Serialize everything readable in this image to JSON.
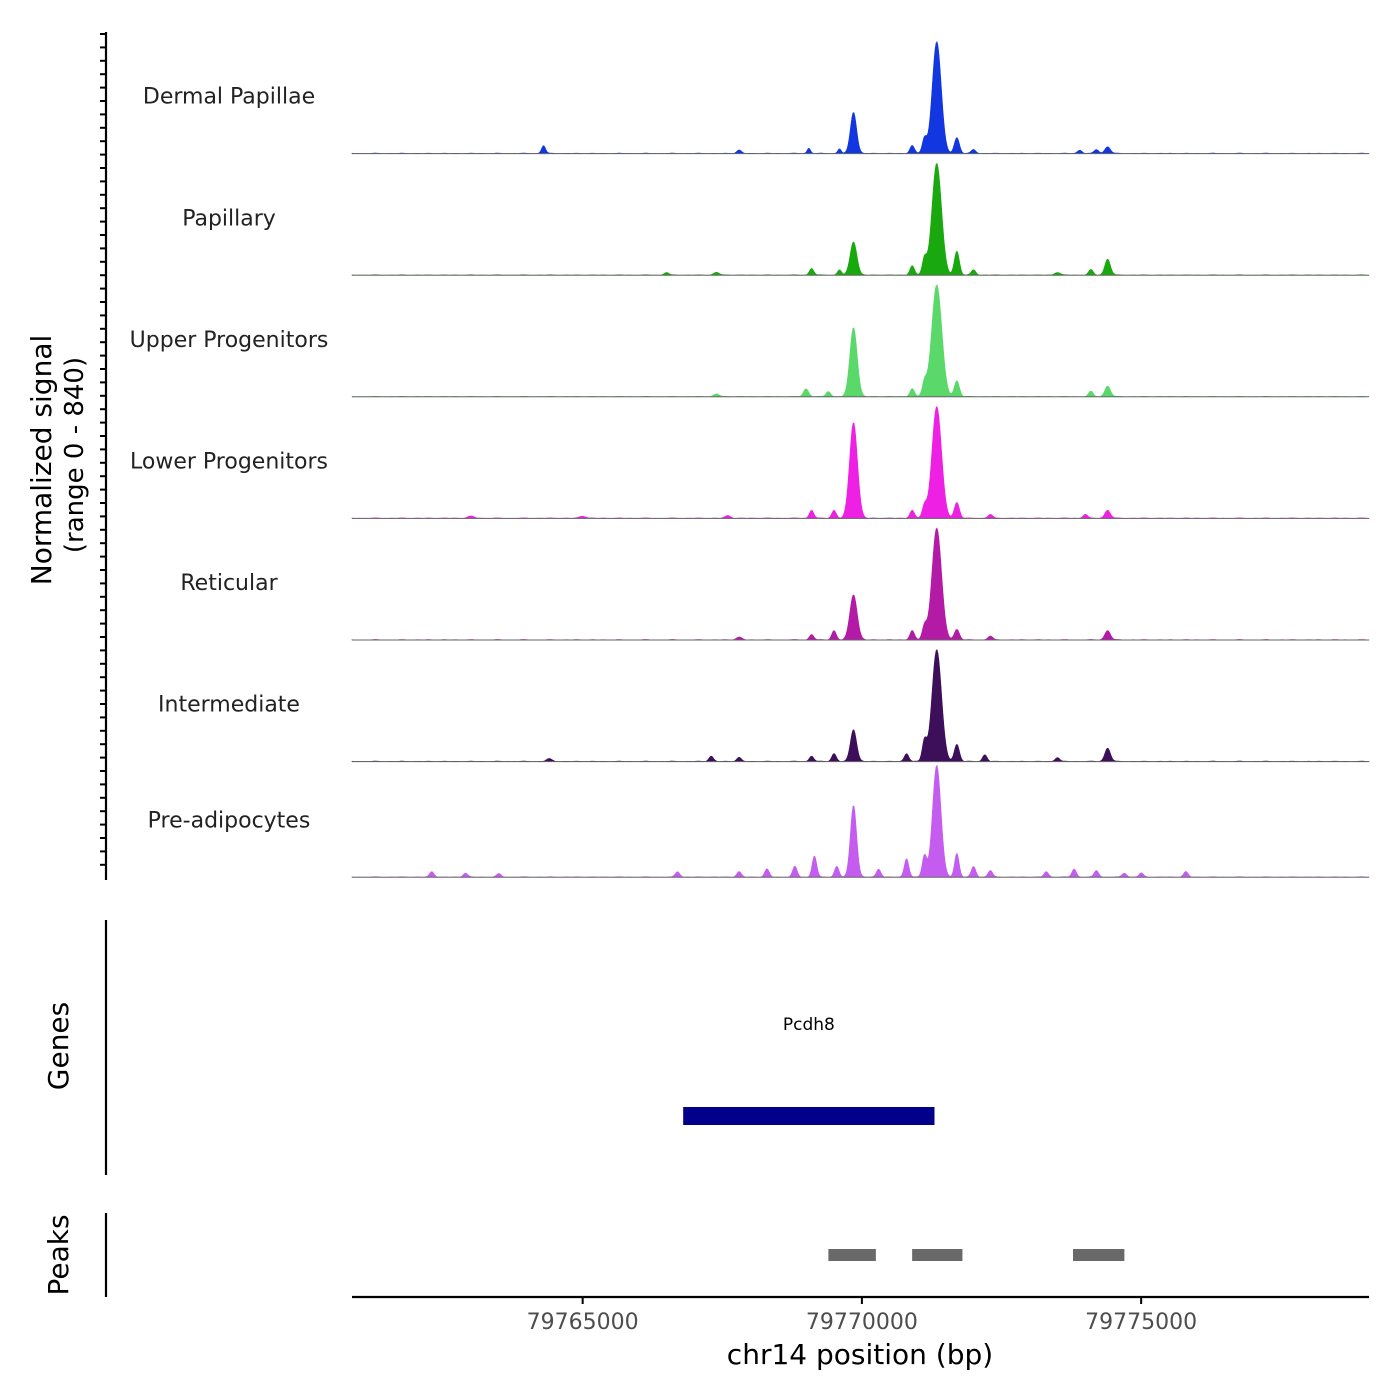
{
  "chart_data": {
    "type": "area",
    "title": "",
    "xlabel": "chr14 position (bp)",
    "ylabel_line1": "Normalized signal",
    "ylabel_line2": "(range 0 - 840)",
    "ylim": [
      0,
      840
    ],
    "xlim": [
      79760870,
      79779080
    ],
    "x_ticks": [
      79765000,
      79770000,
      79775000
    ],
    "x_tick_labels": [
      "79765000",
      "79770000",
      "79775000"
    ],
    "series": [
      {
        "name": "Dermal Papillae",
        "color": "#1236e0",
        "peaks": [
          [
            79764300,
            60,
            35
          ],
          [
            79767800,
            25,
            40
          ],
          [
            79769050,
            40,
            30
          ],
          [
            79769600,
            35,
            30
          ],
          [
            79769850,
            310,
            55
          ],
          [
            79770900,
            60,
            40
          ],
          [
            79771120,
            110,
            40
          ],
          [
            79771340,
            840,
            80
          ],
          [
            79771700,
            120,
            45
          ],
          [
            79772000,
            30,
            40
          ],
          [
            79773900,
            25,
            40
          ],
          [
            79774200,
            30,
            40
          ],
          [
            79774400,
            50,
            50
          ]
        ]
      },
      {
        "name": "Papillary",
        "color": "#1aa80f",
        "peaks": [
          [
            79766500,
            20,
            40
          ],
          [
            79767400,
            20,
            50
          ],
          [
            79769100,
            50,
            40
          ],
          [
            79769600,
            40,
            35
          ],
          [
            79769850,
            250,
            60
          ],
          [
            79770900,
            70,
            40
          ],
          [
            79771120,
            120,
            40
          ],
          [
            79771340,
            840,
            85
          ],
          [
            79771700,
            180,
            45
          ],
          [
            79772000,
            40,
            40
          ],
          [
            79773500,
            20,
            50
          ],
          [
            79774100,
            40,
            40
          ],
          [
            79774400,
            120,
            50
          ]
        ]
      },
      {
        "name": "Upper Progenitors",
        "color": "#5ad96a",
        "peaks": [
          [
            79767400,
            20,
            50
          ],
          [
            79769000,
            60,
            45
          ],
          [
            79769400,
            40,
            40
          ],
          [
            79769850,
            520,
            65
          ],
          [
            79770900,
            60,
            40
          ],
          [
            79771120,
            100,
            40
          ],
          [
            79771340,
            840,
            90
          ],
          [
            79771700,
            120,
            45
          ],
          [
            79774100,
            40,
            40
          ],
          [
            79774400,
            80,
            50
          ]
        ]
      },
      {
        "name": "Lower Progenitors",
        "color": "#ee20e4",
        "peaks": [
          [
            79763000,
            15,
            60
          ],
          [
            79765000,
            15,
            60
          ],
          [
            79767600,
            20,
            50
          ],
          [
            79769100,
            60,
            40
          ],
          [
            79769500,
            60,
            40
          ],
          [
            79769850,
            720,
            70
          ],
          [
            79770900,
            60,
            40
          ],
          [
            79771120,
            90,
            40
          ],
          [
            79771340,
            840,
            85
          ],
          [
            79771700,
            120,
            45
          ],
          [
            79772300,
            30,
            40
          ],
          [
            79774000,
            30,
            40
          ],
          [
            79774400,
            60,
            50
          ]
        ]
      },
      {
        "name": "Reticular",
        "color": "#b31aa6",
        "peaks": [
          [
            79767800,
            20,
            50
          ],
          [
            79769100,
            40,
            40
          ],
          [
            79769500,
            70,
            40
          ],
          [
            79769850,
            340,
            65
          ],
          [
            79770900,
            70,
            40
          ],
          [
            79771120,
            100,
            40
          ],
          [
            79771340,
            840,
            85
          ],
          [
            79771700,
            80,
            45
          ],
          [
            79772300,
            30,
            40
          ],
          [
            79774400,
            70,
            50
          ]
        ]
      },
      {
        "name": "Intermediate",
        "color": "#3d0f5a",
        "peaks": [
          [
            79764400,
            20,
            50
          ],
          [
            79767300,
            40,
            40
          ],
          [
            79767800,
            30,
            40
          ],
          [
            79769100,
            40,
            40
          ],
          [
            79769500,
            60,
            40
          ],
          [
            79769850,
            240,
            55
          ],
          [
            79770800,
            60,
            40
          ],
          [
            79771120,
            150,
            40
          ],
          [
            79771340,
            840,
            85
          ],
          [
            79771700,
            130,
            45
          ],
          [
            79772200,
            50,
            40
          ],
          [
            79773500,
            30,
            40
          ],
          [
            79774400,
            100,
            50
          ]
        ]
      },
      {
        "name": "Pre-adipocytes",
        "color": "#c45cf0",
        "peaks": [
          [
            79762300,
            40,
            40
          ],
          [
            79762900,
            30,
            40
          ],
          [
            79763500,
            25,
            40
          ],
          [
            79766700,
            40,
            40
          ],
          [
            79767800,
            40,
            40
          ],
          [
            79768300,
            60,
            40
          ],
          [
            79768800,
            80,
            40
          ],
          [
            79769150,
            160,
            40
          ],
          [
            79769550,
            80,
            40
          ],
          [
            79769850,
            540,
            55
          ],
          [
            79770300,
            60,
            40
          ],
          [
            79770800,
            140,
            40
          ],
          [
            79771120,
            160,
            40
          ],
          [
            79771340,
            840,
            75
          ],
          [
            79771700,
            180,
            40
          ],
          [
            79772000,
            80,
            40
          ],
          [
            79772300,
            50,
            40
          ],
          [
            79773300,
            40,
            40
          ],
          [
            79773800,
            60,
            40
          ],
          [
            79774200,
            50,
            40
          ],
          [
            79774700,
            30,
            40
          ],
          [
            79775000,
            30,
            40
          ],
          [
            79775800,
            40,
            40
          ]
        ]
      }
    ],
    "genes": [
      {
        "name": "Pcdh8",
        "start": 79766800,
        "end": 79771300,
        "color": "#00008b"
      }
    ],
    "genes_label": "Genes",
    "peaks_label": "Peaks",
    "peak_regions": [
      [
        79769400,
        79770250
      ],
      [
        79770900,
        79771800
      ],
      [
        79773780,
        79774700
      ]
    ],
    "peak_color": "#696969"
  }
}
